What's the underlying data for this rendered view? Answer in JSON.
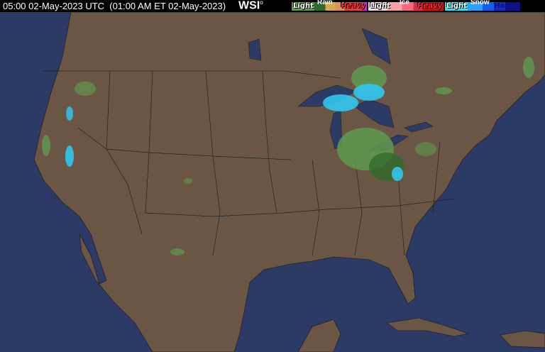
{
  "header": {
    "timestamp": "05:00 02-May-2023 UTC  (01:00 AM ET 02-May-2023)",
    "logo": "WSI"
  },
  "legend": [
    {
      "type": "Rain",
      "light": "Light",
      "heavy": "Heavy",
      "colors": [
        "#5f9a4f",
        "#2f6a2a",
        "#d8a94a",
        "#e0905a",
        "#e04040",
        "#d02bd0"
      ]
    },
    {
      "type": "Ice",
      "light": "Light",
      "heavy": "Heavy",
      "colors": [
        "#f8d8e0",
        "#f6a0a8",
        "#f56a80",
        "#e02850",
        "#c81018"
      ]
    },
    {
      "type": "Snow",
      "light": "Light",
      "heavy": "Heavy",
      "colors": [
        "#30e0f0",
        "#30a0ff",
        "#1060f0",
        "#1030c0",
        "#10108a"
      ]
    }
  ],
  "colors": {
    "ocean": "#2c3a66",
    "land": "#6b5545",
    "border": "#222222"
  }
}
